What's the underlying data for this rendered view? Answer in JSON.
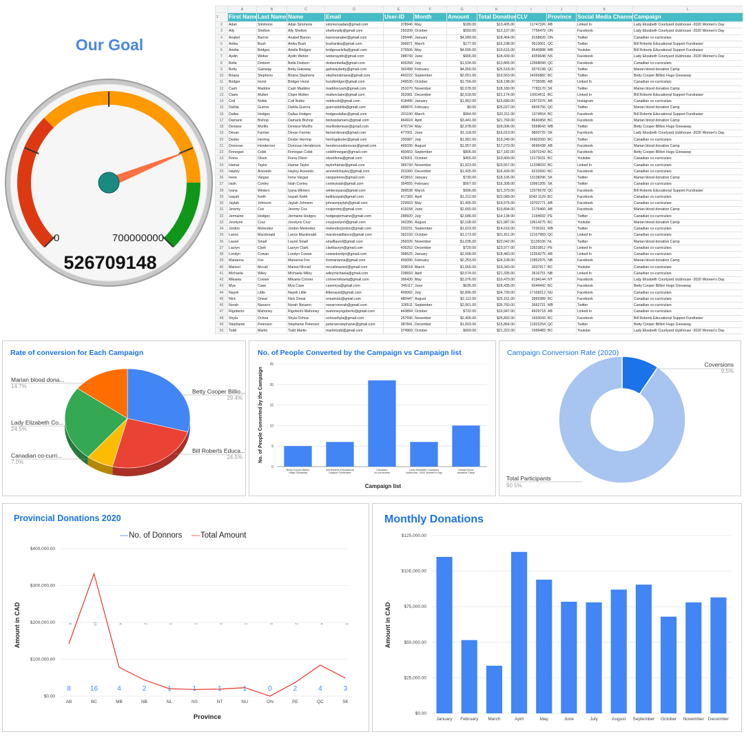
{
  "gauge": {
    "title": "Our Goal",
    "min_label": "0",
    "max_label": "700000000",
    "value_label": "526709148",
    "min": 0,
    "max": 700000000,
    "value": 526709148,
    "colors": {
      "low": "#dc3912",
      "mid": "#ff9900",
      "high": "#109618",
      "needle": "#ff7043",
      "hub": "#1a8a80"
    }
  },
  "sheet": {
    "column_letters": [
      "A",
      "B",
      "C",
      "D",
      "E",
      "F",
      "G",
      "H",
      "I",
      "J",
      "K",
      "L"
    ],
    "headers": [
      "First Name",
      "Last Name",
      "Name",
      "Email",
      "User-ID",
      "Month",
      "Amount",
      "Total Donation",
      "CLV",
      "Province",
      "Social Media Channel",
      "Campaign"
    ],
    "header_color": "#46bdc6",
    "rows": [
      [
        "Adan",
        "Simmons",
        "Adan Simmons",
        "simmonsadan@gmail.com",
        "378946",
        "May",
        "$189.00",
        "$13,405.00",
        "11747326",
        "AB",
        "Linked In",
        "Lady Elizabeth Courtyard clubhouse -2020 Women's Day"
      ],
      [
        "Ally",
        "Shelton",
        "Ally Shelton",
        "sheltonally@gmail.com",
        "250209",
        "October",
        "$550.00",
        "$13,107.00",
        "7756479",
        "ON",
        "Facebook",
        "Lady Elizabeth Courtyard clubhouse -2020 Women's Day"
      ],
      [
        "Anabel",
        "Barron",
        "Anabel Barron",
        "barronanabel@gmail.com",
        "295446",
        "January",
        "$4,589.00",
        "$18,464.00",
        "9158826",
        "ON",
        "Twitter",
        "Canadian co-curriculars"
      ],
      [
        "Anika",
        "Bush",
        "Anika Bush",
        "bushanika@gmail.com",
        "306871",
        "March",
        "$177.00",
        "$16,238.00",
        "9513001",
        "QC",
        "Twitter",
        "Bill Roberts Educational Support Fundraiser"
      ],
      [
        "Ariella",
        "Bridges",
        "Ariella Bridges",
        "bridgesariella@gmail.com",
        "275506",
        "May",
        "$4,695.00",
        "$19,616.00",
        "8540888",
        "MB",
        "Youtube",
        "Bill Roberts Educational Support Fundraiser"
      ],
      [
        "Aydin",
        "Weber",
        "Aydin Weber",
        "weberaydin@gmail.com",
        "288743",
        "June",
        "$906.00",
        "$18,439.00",
        "4359648",
        "NS",
        "Facebook",
        "Lady Elizabeth Courtyard clubhouse -2020 Women's Day"
      ],
      [
        "Bella",
        "Dodson",
        "Bella Dodson",
        "dodsonbella@gmail.com",
        "405358",
        "July",
        "$1,534.00",
        "$13,865.00",
        "12568098",
        "QC",
        "Facebook",
        "Canadian co-curriculars"
      ],
      [
        "Betty",
        "Galoway",
        "Betty Galoway",
        "galowaybetty@gmail.com",
        "302458",
        "February",
        "$4,050.00",
        "$25,518.00",
        "9376198",
        "QC",
        "Twitter",
        "Marian blood donation Camp"
      ],
      [
        "Briana",
        "Stephens",
        "Briana Stephens",
        "stephensbriana@gmail.com",
        "460222",
        "September",
        "$2,051.00",
        "$19,563.00",
        "14266882",
        "BC",
        "Twitter",
        "Betty Cooper Billion Hugs Giveaway"
      ],
      [
        "Bridger",
        "Hurst",
        "Bridger Hurst",
        "hurstbridger@gmail.com",
        "249535",
        "October",
        "$1,756.00",
        "$18,198.00",
        "7735585",
        "AB",
        "Linked In",
        "Canadian co-curriculars"
      ],
      [
        "Cash",
        "Maddox",
        "Cash Maddox",
        "maddoxcash@gmail.com",
        "251070",
        "November",
        "$2,078.00",
        "$18,180.00",
        "7783170",
        "SK",
        "Twitter",
        "Marian blood donation Camp"
      ],
      [
        "Claire",
        "Mullen",
        "Claire Mullen",
        "mullenclaire@gmail.com",
        "352081",
        "December",
        "$2,518.00",
        "$21,174.00",
        "10914511",
        "BC",
        "Linked In",
        "Bill Roberts Educational Support Fundraiser"
      ],
      [
        "Colt",
        "Noble",
        "Colt Noble",
        "noblecolt@gmail.com",
        "418496",
        "January",
        "$1,952.00",
        "$15,680.00",
        "12973376",
        "AB",
        "Instagram",
        "Canadian co-curriculars"
      ],
      [
        "Dahlia",
        "Guerra",
        "Dahlia Guerra",
        "guerradahlia@gmail.com",
        "489876",
        "February",
        "$0.00",
        "$25,027.00",
        "4605756",
        "QC",
        "Twitter",
        "Marian blood donation Camp"
      ],
      [
        "Dallas",
        "Hodges",
        "Dallas Hodges",
        "hodgesdallas@gmail.com",
        "201190",
        "March",
        "$964.00",
        "$20,311.00",
        "1374554",
        "BC",
        "Facebook",
        "Bill Roberts Educational Support Fundraiser"
      ],
      [
        "Damaris",
        "Bishop",
        "Damaris Bishop",
        "bishopdamaris@gmail.com",
        "464924",
        "April",
        "$3,441.00",
        "$21,769.00",
        "8660458",
        "BC",
        "Facebook",
        "Marian blood donation Camp"
      ],
      [
        "Denisse",
        "Murillo",
        "Denisse Murillo",
        "murillodenisse@gmail.com",
        "470734",
        "May",
        "$2,978.00",
        "$18,006.00",
        "5568043",
        "MB",
        "Twitter",
        "Betty Cooper Billion Hugs Giveaway"
      ],
      [
        "Devan",
        "Farmer",
        "Devan Farmer",
        "farmerdevan@gmail.com",
        "477001",
        "June",
        "$1,118.00",
        "$16,013.00",
        "9803725",
        "SK",
        "Facebook",
        "Lady Elizabeth Courtyard clubhouse -2020 Women's Day"
      ],
      [
        "Dexter",
        "Herring",
        "Dexter Herring",
        "herringdexter@gmail.com",
        "330987",
        "July",
        "$1,981.00",
        "$19,240.00",
        "16902050",
        "BC",
        "Twitter",
        "Canadian co-curriculars"
      ],
      [
        "Donovan",
        "Henderson",
        "Donovan Henderson",
        "hendersondonovan@gmail.com",
        "499336",
        "August",
        "$1,057.00",
        "$17,070.00",
        "9696438",
        "AB",
        "Facebook",
        "Marian blood donation Camp"
      ],
      [
        "Finnegan",
        "Cobb",
        "Finnegan Cobb",
        "cobbfinnegan@gmail.com",
        "450653",
        "September",
        "$806.00",
        "$17,182.00",
        "13970243",
        "BC",
        "Facebook",
        "Betty Cooper Billion Hugs Giveaway"
      ],
      [
        "Fiona",
        "Olson",
        "Fiona Olson",
        "olsonfiona@gmail.com",
        "425001",
        "October",
        "$455.00",
        "$19,409.00",
        "13175031",
        "BC",
        "Youtube",
        "Canadian co-curriculars"
      ],
      [
        "Hamar",
        "Taylor",
        "Hamar Taylor",
        "taylorhamar@gmail.com",
        "365743",
        "November",
        "$1,923.00",
        "$20,567.00",
        "11338033",
        "BC",
        "Linked In",
        "Canadian co-curriculars"
      ],
      [
        "Hayley",
        "Acevedo",
        "Hayley Acevedo",
        "acevedohayley@gmail.com",
        "201060",
        "December",
        "$1,425.00",
        "$16,439.00",
        "6232650",
        "BC",
        "Facebook",
        "Canadian co-curriculars"
      ],
      [
        "Irene",
        "Vargas",
        "Irene Vargas",
        "vargasirene@gmail.com",
        "423816",
        "January",
        "$730.00",
        "$18,106.00",
        "13138296",
        "SK",
        "Twitter",
        "Marian blood donation Camp"
      ],
      [
        "Isiah",
        "Conley",
        "Isiah Conley",
        "conleyisiah@gmail.com",
        "354555",
        "February",
        "$567.00",
        "$16,308.00",
        "10991205",
        "SK",
        "Twitter",
        "Canadian co-curriculars"
      ],
      [
        "Iyana",
        "Winters",
        "Iyana Winters",
        "wintersiyana@gmail.com",
        "399538",
        "March",
        "$996.00",
        "$21,379.00",
        "12076678",
        "QC",
        "Facebook",
        "Bill Roberts Educational Support Fundraiser"
      ],
      [
        "Izayah",
        "Keith",
        "Izayah Keith",
        "keithizayah@gmail.com",
        "417383",
        "April",
        "$1,212.00",
        "$22,089.00",
        "9243 1129",
        "BC",
        "Facebook",
        "Canadian co-curriculars"
      ],
      [
        "Jaylah",
        "Johnson",
        "Jaylah Johnson",
        "johnsonjaylah@gmail.com",
        "229553",
        "May",
        "$1,495.00",
        "$19,975.00",
        "19702771",
        "AB",
        "Facebook",
        "Canadian co-curriculars"
      ],
      [
        "Jeremy",
        "Cox",
        "Jeremy Cox",
        "coxjeremy@gmail.com",
        "419158",
        "June",
        "$2,665.00",
        "$19,894.00",
        "2176460",
        "AB",
        "Facebook",
        "Marian blood donation Camp"
      ],
      [
        "Jermaine",
        "Hodges",
        "Jermaine Hodges",
        "hodgesjermaine@gmail.com",
        "288920",
        "July",
        "$2,586.00",
        "$14,134.00",
        "2194692",
        "PE",
        "Twitter",
        "Canadian co-curriculars"
      ],
      [
        "Jocelynn",
        "Cruz",
        "Jocelynn Cruz",
        "cruzjocelynn@gmail.com",
        "342396",
        "August",
        "$2,108.00",
        "$21,987.00",
        "10614275",
        "BC",
        "Youtube",
        "Marian blood donation Camp"
      ],
      [
        "Jordon",
        "Melendez",
        "Jordon Melendez",
        "melendezjordon@gmail.com",
        "233231",
        "September",
        "$1,623.00",
        "$14,616.00",
        "7230161",
        "MB",
        "Twitter",
        "Canadian co-curriculars"
      ],
      [
        "Lance",
        "Macdonald",
        "Lance Macdonald",
        "macdonaldlance@gmail.com",
        "392193",
        "October",
        "$1,173.00",
        "$21,811.00",
        "12157983",
        "QC",
        "Linked In",
        "Canadian co-curriculars"
      ],
      [
        "Laurel",
        "Small",
        "Laurel Small",
        "smalllaurel@gmail.com",
        "359326",
        "November",
        "$1,035.00",
        "$22,042.00",
        "11139106",
        "NL",
        "Twitter",
        "Marian blood donation Camp"
      ],
      [
        "Lauryn",
        "Clark",
        "Lauryn Clark",
        "clarklauryn@gmail.com",
        "436252",
        "December",
        "$720.00",
        "$23,977.00",
        "13523812",
        "PE",
        "Linked In",
        "Canadian co-curriculars"
      ],
      [
        "Londyn",
        "Cowan",
        "Londyn Cowan",
        "cowanlondyn@gmail.com",
        "398525",
        "January",
        "$2,008.00",
        "$18,483.00",
        "12354275",
        "AB",
        "Linked In",
        "Canadian co-curriculars"
      ],
      [
        "Marianna",
        "Fox",
        "Marianna Fox",
        "foxmarianna@gmail.com",
        "450096",
        "February",
        "$2,253.00",
        "$24,108.00",
        "13952976",
        "NB",
        "Facebook",
        "Marian blood donation Camp"
      ],
      [
        "Marisol",
        "Mccall",
        "Marisol Mccall",
        "mccallmarisol@gmail.com",
        "208018",
        "March",
        "$1,065.00",
        "$19,343.00",
        "3207917",
        "BC",
        "Youtube",
        "Canadian co-curriculars"
      ],
      [
        "Michaela",
        "Wiley",
        "Michaela Wiley",
        "wileymichaela@gmail.com",
        "238693",
        "April",
        "$3,574.00",
        "$21,335.00",
        "3616751",
        "NB",
        "Linked In",
        "Canadian co-curriculars"
      ],
      [
        "Mikaela",
        "Conner",
        "Mikaela Conner",
        "connermikaela@gmail.com",
        "366430",
        "May",
        "$2,076.00",
        "$19,470.00",
        "6194144",
        "NT",
        "Facebook",
        "Lady Elizabeth Courtyard clubhouse -2020 Women's Day"
      ],
      [
        "Mya",
        "Case",
        "Mya Case",
        "casemya@gmail.com",
        "345117",
        "June",
        "$635.00",
        "$18,435.00",
        "6044442",
        "BC",
        "Facebook",
        "Betty Cooper Billion Hugs Giveaway"
      ],
      [
        "Nayeli",
        "Little",
        "Nayeli Little",
        "littlenayeli@gmail.com",
        "499062",
        "July",
        "$2,896.00",
        "$24,730.00",
        "17168212",
        "NU",
        "Facebook",
        "Canadian co-curriculars"
      ],
      [
        "Nick",
        "Oneal",
        "Nick Oneal",
        "onealnick@gmail.com",
        "480447",
        "August",
        "$2,112.00",
        "$25,161.00",
        "3965389",
        "BC",
        "Facebook",
        "Canadian co-curriculars"
      ],
      [
        "Norah",
        "Navarro",
        "Norah Navarro",
        "navarronorah@gmail.com",
        "328511",
        "September",
        "$2,061.00",
        "$26,760.00",
        "3662721",
        "MB",
        "Twitter",
        "Canadian co-curriculars"
      ],
      [
        "Rigoberto",
        "Mahoney",
        "Rigoberto Mahoney",
        "mahoneyrigoberto@gmail.com",
        "443894",
        "October",
        "$732.00",
        "$19,947.00",
        "4929718",
        "AB",
        "Linked In",
        "Canadian co-curriculars"
      ],
      [
        "Shyla",
        "Ochoa",
        "Shyla Ochoa",
        "ochoashyla@gmail.com",
        "257696",
        "November",
        "$2,406.00",
        "$25,892.00",
        "1693043",
        "BC",
        "Facebook",
        "Bill Roberts Educational Support Fundraiser"
      ],
      [
        "Stephanie",
        "Petersen",
        "Stephanie Petersen",
        "petersenstephanie@gmail.com",
        "387841",
        "December",
        "$1,003.00",
        "$15,864.00",
        "11922254",
        "QC",
        "Twitter",
        "Betty Cooper Billion Hugs Giveaway"
      ],
      [
        "Todd",
        "Martin",
        "Todd Martin",
        "martintodd@gmail.com",
        "374969",
        "October",
        "$669.00",
        "$21,322.00",
        "2999483",
        "BC",
        "Youtube",
        "Lady Elizabeth Courtyard clubhouse -2020 Women's Day"
      ]
    ]
  },
  "chart_data": [
    {
      "type": "pie",
      "title": "Rate of conversion for Each Campaign",
      "style": "3d",
      "slices": [
        {
          "label": "Betty Cooper Billio...",
          "value": 29.4,
          "pct_label": "29.4%",
          "color": "#4285f4"
        },
        {
          "label": "Bill Roberts Educa...",
          "value": 24.5,
          "pct_label": "24.5%",
          "color": "#ea4335"
        },
        {
          "label": "Canadian co-curri...",
          "value": 7.0,
          "pct_label": "7.0%",
          "color": "#fbbc04"
        },
        {
          "label": "Lady Elizabeth Co...",
          "value": 24.5,
          "pct_label": "24.5%",
          "color": "#34a853"
        },
        {
          "label": "Marian blood dona...",
          "value": 14.7,
          "pct_label": "14.7%",
          "color": "#ff6d01"
        }
      ]
    },
    {
      "type": "bar",
      "title": "No. of People Converted by the Campaign vs Campaign list",
      "xlabel": "Campaign list",
      "ylabel": "No. of People Converted by the Campaign",
      "categories": [
        "Betty Cooper Billion Hugs Giveaway",
        "Bill Roberts Educational Support Fundraiser",
        "Canadian co-curriculars",
        "Lady Elizabeth Courtyard clubhouse -2020 Women's Day",
        "Marian blood donation Camp"
      ],
      "values": [
        5,
        6,
        21,
        6,
        10
      ],
      "ylim": [
        0,
        25
      ],
      "yticks": [
        0,
        5,
        10,
        15,
        20,
        25
      ],
      "color": "#4285f4"
    },
    {
      "type": "pie",
      "style": "donut",
      "title": "Campaign Conversion Rate (2020)",
      "slices": [
        {
          "label": "Coversions",
          "value": 9.5,
          "pct_label": "9.5%",
          "color": "#1a73e8"
        },
        {
          "label": "Total Participants",
          "value": 90.5,
          "pct_label": "90.5%",
          "color": "#a8c4f0"
        }
      ]
    },
    {
      "type": "line",
      "title": "Provincial Donations 2020",
      "xlabel": "Province",
      "ylabel": "Amount in CAD",
      "categories": [
        "AB",
        "BC",
        "MB",
        "NB",
        "NL",
        "NS",
        "NT",
        "NU",
        "ON",
        "PE",
        "QC",
        "SK"
      ],
      "series": [
        {
          "name": "No. of Donnors",
          "values": [
            8,
            16,
            4,
            2,
            1,
            1,
            1,
            1,
            0,
            2,
            4,
            3
          ],
          "color": "#4285f4"
        },
        {
          "name": "Total Amount",
          "values": [
            142000,
            332000,
            78000,
            44000,
            20000,
            18000,
            19000,
            23000,
            0,
            37000,
            84000,
            49000
          ],
          "color": "#ea4335"
        }
      ],
      "ylim": [
        0,
        400000
      ],
      "yticks": [
        "$0.00",
        "$100,000.00",
        "$200,000.00",
        "$300,000.00",
        "$400,000.00"
      ],
      "legend": "top"
    },
    {
      "type": "bar",
      "title": "Monthly Donations",
      "ylabel": "Amount in CAD",
      "categories": [
        "January",
        "February",
        "March",
        "April",
        "May",
        "June",
        "July",
        "August",
        "September",
        "October",
        "November",
        "December"
      ],
      "values": [
        110000,
        51500,
        33500,
        113500,
        94000,
        78500,
        78000,
        87000,
        90500,
        68000,
        78000,
        81500
      ],
      "ylim": [
        0,
        125000
      ],
      "yticks": [
        "$0.00",
        "$25,000.00",
        "$50,000.00",
        "$75,000.00",
        "$100,000.00",
        "$125,000.00"
      ],
      "color": "#4285f4"
    }
  ]
}
